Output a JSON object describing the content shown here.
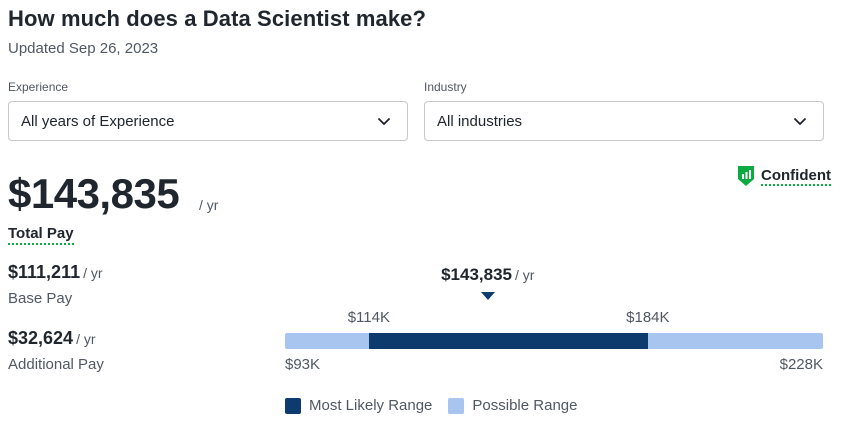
{
  "header": {
    "title": "How much does a Data Scientist make?",
    "updated": "Updated Sep 26, 2023"
  },
  "filters": {
    "experience": {
      "label": "Experience",
      "value": "All years of Experience"
    },
    "industry": {
      "label": "Industry",
      "value": "All industries"
    }
  },
  "total": {
    "amount": "$143,835",
    "unit": "/ yr",
    "label": "Total Pay"
  },
  "confidence": {
    "label": "Confident",
    "icon": "confidence-shield-icon",
    "color": "#0caa41"
  },
  "breakdown": [
    {
      "amount": "$111,211",
      "unit": "/ yr",
      "label": "Base Pay"
    },
    {
      "amount": "$32,624",
      "unit": "/ yr",
      "label": "Additional Pay"
    }
  ],
  "range": {
    "marker_value": "$143,835",
    "marker_unit": "/ yr",
    "min_label": "$93K",
    "max_label": "$228K",
    "likely_low_label": "$114K",
    "likely_high_label": "$184K",
    "min": 93,
    "max": 228,
    "likely_low": 114,
    "likely_high": 184,
    "marker": 143.835,
    "colors": {
      "likely": "#0d3b6e",
      "possible": "#a7c5ef"
    }
  },
  "legend": {
    "likely": "Most Likely Range",
    "possible": "Possible Range"
  }
}
